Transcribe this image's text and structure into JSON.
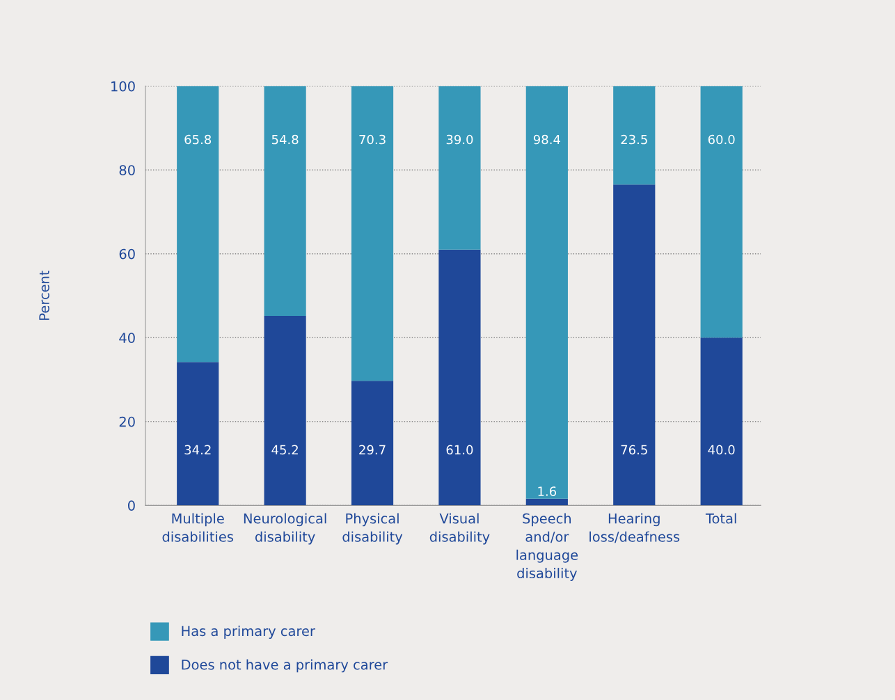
{
  "chart_data": {
    "type": "bar",
    "stacked": true,
    "ylabel": "Percent",
    "categories": [
      "Multiple\ndisabilities",
      "Neurological\ndisability",
      "Physical\ndisability",
      "Visual\ndisability",
      "Speech\nand/or\nlanguage\ndisability",
      "Hearing\nloss/deafness",
      "Total"
    ],
    "series": [
      {
        "name": "Does not have a primary carer",
        "color": "#1f4899",
        "values": [
          34.2,
          45.2,
          29.7,
          61.0,
          1.6,
          76.5,
          40.0
        ],
        "value_labels": [
          "34.2",
          "45.2",
          "29.7",
          "61.0",
          "1.6",
          "76.5",
          "40.0"
        ]
      },
      {
        "name": "Has a primary carer",
        "color": "#3698b8",
        "values": [
          65.8,
          54.8,
          70.3,
          39.0,
          98.4,
          23.5,
          60.0
        ],
        "value_labels": [
          "65.8",
          "54.8",
          "70.3",
          "39.0",
          "98.4",
          "23.5",
          "60.0"
        ]
      }
    ],
    "ylim": [
      0,
      100
    ],
    "yticks": [
      0,
      20,
      40,
      60,
      80,
      100
    ],
    "grid": "y",
    "legend": "bottom"
  }
}
